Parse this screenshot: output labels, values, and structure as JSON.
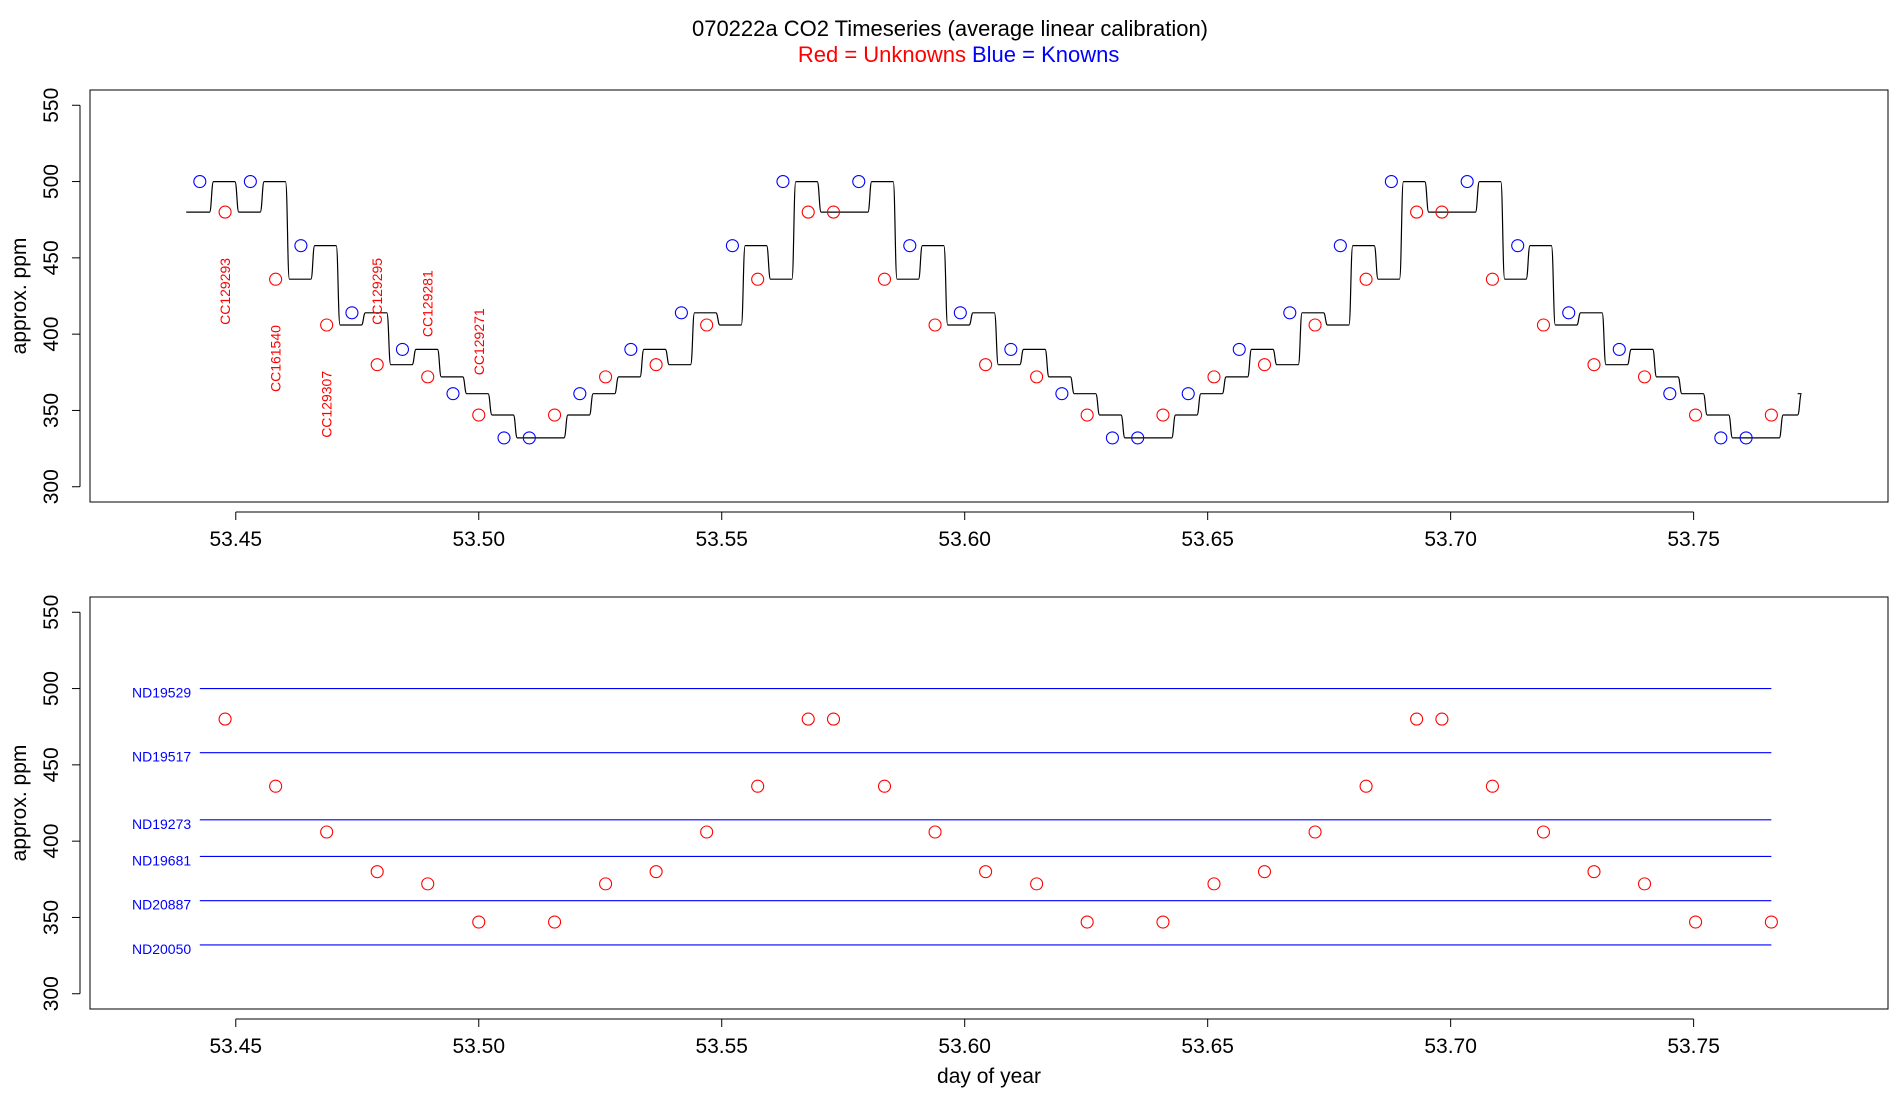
{
  "header": {
    "title": "070222a   CO2 Timeseries (average linear calibration)",
    "legend_red": "Red = Unknowns",
    "legend_blue": "Blue = Knowns"
  },
  "colors": {
    "unknown": "#ff0000",
    "known": "#0000ff",
    "trace": "#000000",
    "axis": "#000000"
  },
  "chart_data": [
    {
      "type": "line",
      "ylabel": "approx. ppm",
      "xlabel": "",
      "xlim": [
        53.42,
        53.79
      ],
      "ylim": [
        290,
        560
      ],
      "x_ticks": [
        "53.45",
        "53.50",
        "53.55",
        "53.60",
        "53.65",
        "53.70",
        "53.75"
      ],
      "y_ticks": [
        "300",
        "350",
        "400",
        "450",
        "500",
        "550"
      ],
      "trace": {
        "x0": 53.4398,
        "x1": 53.7718,
        "levels": [
          480,
          500,
          480,
          500,
          436,
          458,
          406,
          414,
          380,
          390,
          372,
          361,
          347,
          332,
          332,
          347,
          361,
          372,
          390,
          380,
          414,
          406,
          458,
          436,
          500,
          480,
          480,
          500,
          436,
          458,
          406,
          414,
          380,
          390,
          372,
          361,
          347,
          332,
          332,
          347,
          361,
          372,
          390,
          380,
          414,
          406,
          458,
          436,
          500,
          480,
          480,
          500,
          436,
          458,
          406,
          414,
          380,
          390,
          372,
          361,
          347,
          332,
          332,
          347,
          361
        ],
        "level_length": 0.00521
      },
      "knowns": [
        {
          "x": 53.4426,
          "y": 500
        },
        {
          "x": 53.453,
          "y": 500
        },
        {
          "x": 53.4634,
          "y": 458
        },
        {
          "x": 53.4739,
          "y": 414
        },
        {
          "x": 53.4843,
          "y": 390
        },
        {
          "x": 53.4947,
          "y": 361
        },
        {
          "x": 53.5052,
          "y": 332
        },
        {
          "x": 53.5104,
          "y": 332
        },
        {
          "x": 53.5208,
          "y": 361
        },
        {
          "x": 53.5313,
          "y": 390
        },
        {
          "x": 53.5417,
          "y": 414
        },
        {
          "x": 53.5522,
          "y": 458
        },
        {
          "x": 53.5626,
          "y": 500
        },
        {
          "x": 53.5782,
          "y": 500
        },
        {
          "x": 53.5887,
          "y": 458
        },
        {
          "x": 53.5991,
          "y": 414
        },
        {
          "x": 53.6095,
          "y": 390
        },
        {
          "x": 53.62,
          "y": 361
        },
        {
          "x": 53.6304,
          "y": 332
        },
        {
          "x": 53.6356,
          "y": 332
        },
        {
          "x": 53.646,
          "y": 361
        },
        {
          "x": 53.6565,
          "y": 390
        },
        {
          "x": 53.6669,
          "y": 414
        },
        {
          "x": 53.6773,
          "y": 458
        },
        {
          "x": 53.6878,
          "y": 500
        },
        {
          "x": 53.7034,
          "y": 500
        },
        {
          "x": 53.7138,
          "y": 458
        },
        {
          "x": 53.7243,
          "y": 414
        },
        {
          "x": 53.7347,
          "y": 390
        },
        {
          "x": 53.7451,
          "y": 361
        },
        {
          "x": 53.7556,
          "y": 332
        },
        {
          "x": 53.7608,
          "y": 332
        }
      ],
      "unknowns": [
        {
          "x": 53.4478,
          "y": 480
        },
        {
          "x": 53.4582,
          "y": 436
        },
        {
          "x": 53.4687,
          "y": 406
        },
        {
          "x": 53.4791,
          "y": 380
        },
        {
          "x": 53.4895,
          "y": 372
        },
        {
          "x": 53.5,
          "y": 347
        },
        {
          "x": 53.5156,
          "y": 347
        },
        {
          "x": 53.5261,
          "y": 372
        },
        {
          "x": 53.5365,
          "y": 380
        },
        {
          "x": 53.5469,
          "y": 406
        },
        {
          "x": 53.5574,
          "y": 436
        },
        {
          "x": 53.5678,
          "y": 480
        },
        {
          "x": 53.573,
          "y": 480
        },
        {
          "x": 53.5835,
          "y": 436
        },
        {
          "x": 53.5939,
          "y": 406
        },
        {
          "x": 53.6043,
          "y": 380
        },
        {
          "x": 53.6148,
          "y": 372
        },
        {
          "x": 53.6252,
          "y": 347
        },
        {
          "x": 53.6408,
          "y": 347
        },
        {
          "x": 53.6513,
          "y": 372
        },
        {
          "x": 53.6617,
          "y": 380
        },
        {
          "x": 53.6721,
          "y": 406
        },
        {
          "x": 53.6826,
          "y": 436
        },
        {
          "x": 53.693,
          "y": 480
        },
        {
          "x": 53.6982,
          "y": 480
        },
        {
          "x": 53.7086,
          "y": 436
        },
        {
          "x": 53.7191,
          "y": 406
        },
        {
          "x": 53.7295,
          "y": 380
        },
        {
          "x": 53.7399,
          "y": 372
        },
        {
          "x": 53.7504,
          "y": 347
        },
        {
          "x": 53.766,
          "y": 347
        }
      ],
      "annotations": [
        {
          "label": "CC129293",
          "x": 53.4478,
          "y": 428
        },
        {
          "label": "CC161540",
          "x": 53.4582,
          "y": 384
        },
        {
          "label": "CC129307",
          "x": 53.4687,
          "y": 354
        },
        {
          "label": "CC129295",
          "x": 53.4791,
          "y": 428
        },
        {
          "label": "CC129281",
          "x": 53.4895,
          "y": 420
        },
        {
          "label": "CC129271",
          "x": 53.5,
          "y": 395
        }
      ]
    },
    {
      "type": "scatter",
      "ylabel": "approx. ppm",
      "xlabel": "day of year",
      "xlim": [
        53.42,
        53.79
      ],
      "ylim": [
        290,
        560
      ],
      "x_ticks": [
        "53.45",
        "53.50",
        "53.55",
        "53.60",
        "53.65",
        "53.70",
        "53.75"
      ],
      "y_ticks": [
        "300",
        "350",
        "400",
        "450",
        "500",
        "550"
      ],
      "standards": [
        {
          "label": "ND19529",
          "y": 500
        },
        {
          "label": "ND19517",
          "y": 458
        },
        {
          "label": "ND19273",
          "y": 414
        },
        {
          "label": "ND19681",
          "y": 390
        },
        {
          "label": "ND20887",
          "y": 361
        },
        {
          "label": "ND20050",
          "y": 332
        }
      ],
      "standards_x_range": [
        53.4426,
        53.766
      ],
      "unknowns": [
        {
          "x": 53.4478,
          "y": 480
        },
        {
          "x": 53.4582,
          "y": 436
        },
        {
          "x": 53.4687,
          "y": 406
        },
        {
          "x": 53.4791,
          "y": 380
        },
        {
          "x": 53.4895,
          "y": 372
        },
        {
          "x": 53.5,
          "y": 347
        },
        {
          "x": 53.5156,
          "y": 347
        },
        {
          "x": 53.5261,
          "y": 372
        },
        {
          "x": 53.5365,
          "y": 380
        },
        {
          "x": 53.5469,
          "y": 406
        },
        {
          "x": 53.5574,
          "y": 436
        },
        {
          "x": 53.5678,
          "y": 480
        },
        {
          "x": 53.573,
          "y": 480
        },
        {
          "x": 53.5835,
          "y": 436
        },
        {
          "x": 53.5939,
          "y": 406
        },
        {
          "x": 53.6043,
          "y": 380
        },
        {
          "x": 53.6148,
          "y": 372
        },
        {
          "x": 53.6252,
          "y": 347
        },
        {
          "x": 53.6408,
          "y": 347
        },
        {
          "x": 53.6513,
          "y": 372
        },
        {
          "x": 53.6617,
          "y": 380
        },
        {
          "x": 53.6721,
          "y": 406
        },
        {
          "x": 53.6826,
          "y": 436
        },
        {
          "x": 53.693,
          "y": 480
        },
        {
          "x": 53.6982,
          "y": 480
        },
        {
          "x": 53.7086,
          "y": 436
        },
        {
          "x": 53.7191,
          "y": 406
        },
        {
          "x": 53.7295,
          "y": 380
        },
        {
          "x": 53.7399,
          "y": 372
        },
        {
          "x": 53.7504,
          "y": 347
        },
        {
          "x": 53.766,
          "y": 347
        }
      ]
    }
  ]
}
